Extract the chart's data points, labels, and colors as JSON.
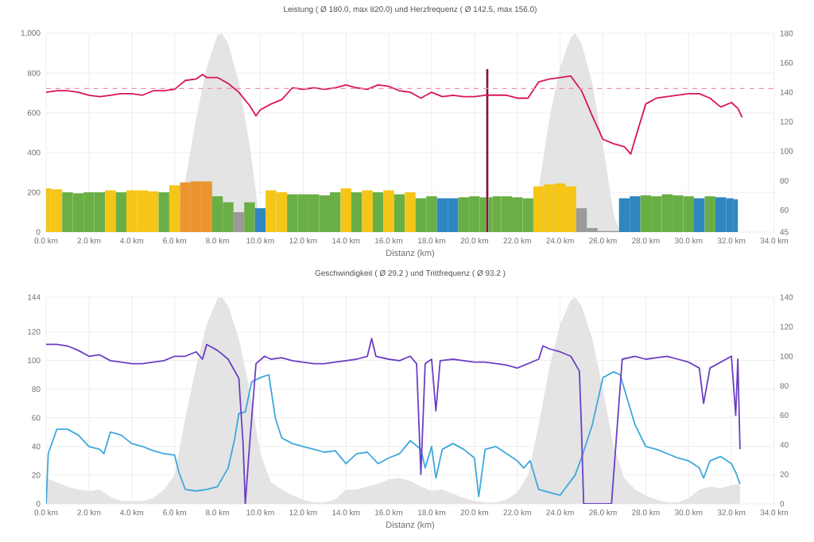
{
  "chart_data": [
    {
      "type": "bar",
      "title": "Leistung ( Ø 180.0, max 820.0) und Herzfrequenz ( Ø 142.5, max 156.0)",
      "xlabel": "Distanz (km)",
      "xlim": [
        0,
        34
      ],
      "xticks": [
        {
          "value": 0,
          "label": "0.0 km"
        },
        {
          "value": 2,
          "label": "2.0 km"
        },
        {
          "value": 4,
          "label": "4.0 km"
        },
        {
          "value": 6,
          "label": "6.0 km"
        },
        {
          "value": 8,
          "label": "8.0 km"
        },
        {
          "value": 10,
          "label": "10.0 km"
        },
        {
          "value": 12,
          "label": "12.0 km"
        },
        {
          "value": 14,
          "label": "14.0 km"
        },
        {
          "value": 16,
          "label": "16.0 km"
        },
        {
          "value": 18,
          "label": "18.0 km"
        },
        {
          "value": 20,
          "label": "20.0 km"
        },
        {
          "value": 22,
          "label": "22.0 km"
        },
        {
          "value": 24,
          "label": "24.0 km"
        },
        {
          "value": 26,
          "label": "26.0 km"
        },
        {
          "value": 28,
          "label": "28.0 km"
        },
        {
          "value": 30,
          "label": "30.0 km"
        },
        {
          "value": 32,
          "label": "32.0 km"
        },
        {
          "value": 34,
          "label": "34.0 km"
        }
      ],
      "ylim": [
        0,
        1000
      ],
      "yticks": [
        0,
        200,
        400,
        600,
        800,
        {
          "value": 1000,
          "label": "1,000"
        }
      ],
      "y2lim": [
        45,
        180
      ],
      "y2ticks": [
        45,
        60,
        80,
        100,
        120,
        140,
        160,
        180
      ],
      "grid": true,
      "ref_lines": [
        {
          "axis": "y2",
          "value": 142.5,
          "color": "#f28cab",
          "line_style": "dashed"
        }
      ],
      "series": [
        {
          "type": "area",
          "color": "#e4e4e4",
          "x": [
            6,
            6.5,
            7,
            7.5,
            8,
            8.2,
            8.5,
            9,
            9.5,
            10,
            10.3,
            22.6,
            23,
            23.5,
            24,
            24.5,
            24.7,
            25,
            25.5,
            26,
            26.5,
            26.8
          ],
          "values": [
            0,
            260,
            570,
            830,
            990,
            1000,
            950,
            750,
            440,
            40,
            0,
            0,
            220,
            570,
            830,
            980,
            1000,
            950,
            750,
            440,
            90,
            0
          ]
        },
        {
          "x": [
            0,
            0.5,
            1,
            1.5,
            2,
            2.5,
            3,
            3.5,
            4,
            4.5,
            5,
            5.5,
            6,
            6.5,
            7,
            7.5,
            8,
            8.5,
            9,
            9.5,
            10,
            10.5,
            11,
            11.5,
            12,
            12.5,
            13,
            13.5,
            14,
            14.5,
            15,
            15.5,
            16,
            16.5,
            17,
            17.5,
            18,
            18.5,
            19,
            19.5,
            20,
            20.5,
            20.6,
            20.7,
            21,
            21.5,
            22,
            22.5,
            23,
            23.5,
            24,
            24.5,
            25,
            25.5,
            26,
            26.5,
            27,
            27.5,
            28,
            28.5,
            29,
            29.5,
            30,
            30.5,
            31,
            31.5,
            32,
            32.2
          ],
          "values": [
            220,
            215,
            200,
            195,
            200,
            200,
            210,
            200,
            210,
            210,
            205,
            200,
            235,
            250,
            255,
            255,
            180,
            150,
            100,
            150,
            120,
            210,
            200,
            190,
            190,
            190,
            185,
            200,
            220,
            200,
            210,
            200,
            210,
            190,
            200,
            170,
            180,
            170,
            170,
            175,
            180,
            175,
            820,
            175,
            180,
            180,
            175,
            170,
            230,
            240,
            245,
            230,
            120,
            20,
            5,
            5,
            170,
            180,
            185,
            180,
            190,
            185,
            180,
            170,
            180,
            175,
            170,
            165
          ],
          "colors": [
            "#f5c518",
            "#f5c518",
            "#6aaf45",
            "#6aaf45",
            "#6aaf45",
            "#6aaf45",
            "#f5c518",
            "#6aaf45",
            "#f5c518",
            "#f5c518",
            "#f5c518",
            "#6aaf45",
            "#f5c518",
            "#ea9530",
            "#ea9530",
            "#ea9530",
            "#6aaf45",
            "#6aaf45",
            "#9a9a9a",
            "#6aaf45",
            "#2f86c0",
            "#f5c518",
            "#f5c518",
            "#6aaf45",
            "#6aaf45",
            "#6aaf45",
            "#6aaf45",
            "#6aaf45",
            "#f5c518",
            "#6aaf45",
            "#f5c518",
            "#6aaf45",
            "#f5c518",
            "#6aaf45",
            "#f5c518",
            "#6aaf45",
            "#6aaf45",
            "#2f86c0",
            "#2f86c0",
            "#6aaf45",
            "#6aaf45",
            "#6aaf45",
            "#8b0f45",
            "#6aaf45",
            "#6aaf45",
            "#6aaf45",
            "#6aaf45",
            "#6aaf45",
            "#f5c518",
            "#f5c518",
            "#f5c518",
            "#f5c518",
            "#9a9a9a",
            "#9a9a9a",
            "#9a9a9a",
            "#9a9a9a",
            "#2f86c0",
            "#2f86c0",
            "#6aaf45",
            "#6aaf45",
            "#6aaf45",
            "#6aaf45",
            "#6aaf45",
            "#2f86c0",
            "#6aaf45",
            "#2f86c0",
            "#2f86c0",
            "#2f86c0"
          ]
        },
        {
          "type": "line",
          "axis": "y2",
          "color": "#d8174f",
          "x": [
            0,
            0.5,
            1,
            1.5,
            2,
            2.5,
            3,
            3.5,
            4,
            4.5,
            5,
            5.5,
            6,
            6.5,
            7,
            7.3,
            7.5,
            8,
            8.5,
            9,
            9.5,
            9.8,
            10,
            10.5,
            11,
            11.5,
            12,
            12.5,
            13,
            13.5,
            14,
            14.5,
            15,
            15.5,
            16,
            16.5,
            17,
            17.5,
            18,
            18.5,
            19,
            19.5,
            20,
            20.5,
            21,
            21.5,
            22,
            22.5,
            23,
            23.5,
            24,
            24.5,
            25,
            25.5,
            26,
            26.5,
            27,
            27.3,
            27.5,
            28,
            28.5,
            29,
            29.5,
            30,
            30.5,
            31,
            31.5,
            32,
            32.3,
            32.5
          ],
          "values": [
            140,
            141,
            141,
            140,
            138,
            137,
            138,
            139,
            139,
            138,
            141,
            141,
            142,
            148,
            149,
            152,
            150,
            150,
            146,
            140,
            131,
            124,
            128,
            132,
            135,
            143,
            142,
            143,
            142,
            143,
            145,
            143,
            142,
            145,
            144,
            141,
            140,
            136,
            140,
            137,
            138,
            137,
            137,
            138,
            138,
            138,
            136,
            136,
            147,
            149,
            150,
            151,
            141,
            124,
            108,
            105,
            103,
            98,
            108,
            132,
            136,
            137,
            138,
            139,
            139,
            136,
            130,
            133,
            129,
            123
          ]
        }
      ]
    },
    {
      "type": "line",
      "title": "Geschwindigkeit ( Ø 29.2 ) und Trittfrequenz ( Ø 93.2 )",
      "xlabel": "Distanz (km)",
      "xlim": [
        0,
        34
      ],
      "xticks": [
        {
          "value": 0,
          "label": "0.0 km"
        },
        {
          "value": 2,
          "label": "2.0 km"
        },
        {
          "value": 4,
          "label": "4.0 km"
        },
        {
          "value": 6,
          "label": "6.0 km"
        },
        {
          "value": 8,
          "label": "8.0 km"
        },
        {
          "value": 10,
          "label": "10.0 km"
        },
        {
          "value": 12,
          "label": "12.0 km"
        },
        {
          "value": 14,
          "label": "14.0 km"
        },
        {
          "value": 16,
          "label": "16.0 km"
        },
        {
          "value": 18,
          "label": "18.0 km"
        },
        {
          "value": 20,
          "label": "20.0 km"
        },
        {
          "value": 22,
          "label": "22.0 km"
        },
        {
          "value": 24,
          "label": "24.0 km"
        },
        {
          "value": 26,
          "label": "26.0 km"
        },
        {
          "value": 28,
          "label": "28.0 km"
        },
        {
          "value": 30,
          "label": "30.0 km"
        },
        {
          "value": 32,
          "label": "32.0 km"
        },
        {
          "value": 34,
          "label": "34.0 km"
        }
      ],
      "ylim": [
        0,
        144
      ],
      "yticks": [
        0,
        20,
        40,
        60,
        80,
        100,
        120,
        144
      ],
      "y2lim": [
        0,
        140
      ],
      "y2ticks": [
        0,
        20,
        40,
        60,
        80,
        100,
        120,
        140
      ],
      "grid": true,
      "series": [
        {
          "type": "area",
          "color": "#e4e4e4",
          "x": [
            0,
            0.5,
            1,
            1.5,
            2,
            2.5,
            3,
            3.5,
            4,
            4.5,
            5,
            5.5,
            6,
            6.5,
            7,
            7.5,
            8,
            8.2,
            8.5,
            9,
            9.5,
            10,
            10.5,
            11,
            11.5,
            12,
            12.5,
            13,
            13.5,
            14,
            14.5,
            15,
            15.5,
            16,
            16.5,
            17,
            17.5,
            18,
            18.5,
            19,
            19.5,
            20,
            20.5,
            21,
            21.5,
            22,
            22.5,
            23,
            23.5,
            24,
            24.5,
            24.7,
            25,
            25.5,
            26,
            26.5,
            27,
            27.5,
            28,
            28.5,
            29,
            29.5,
            30,
            30.5,
            31,
            31.5,
            32,
            32.4
          ],
          "values": [
            18,
            15,
            12,
            10,
            9,
            10,
            5,
            2,
            2,
            2,
            4,
            10,
            20,
            60,
            95,
            125,
            143,
            144,
            138,
            115,
            80,
            35,
            15,
            10,
            6,
            3,
            1,
            1,
            3,
            10,
            10,
            12,
            14,
            17,
            18,
            16,
            12,
            9,
            10,
            7,
            4,
            2,
            1,
            1,
            3,
            8,
            20,
            55,
            95,
            125,
            142,
            144,
            138,
            115,
            80,
            40,
            18,
            10,
            6,
            3,
            1,
            1,
            4,
            10,
            12,
            11,
            13,
            14
          ]
        },
        {
          "color": "#3ea8dc",
          "x": [
            0,
            0.1,
            0.5,
            1,
            1.5,
            2,
            2.5,
            2.7,
            3,
            3.5,
            4,
            4.5,
            5,
            5.5,
            6,
            6.2,
            6.5,
            7,
            7.5,
            8,
            8.5,
            8.8,
            9,
            9.3,
            9.6,
            10,
            10.4,
            10.7,
            11,
            11.5,
            12,
            12.5,
            13,
            13.5,
            14,
            14.5,
            15,
            15.5,
            16,
            16.5,
            17,
            17.5,
            17.7,
            18,
            18.2,
            18.5,
            19,
            19.5,
            20,
            20.2,
            20.5,
            21,
            21.5,
            22,
            22.3,
            22.6,
            23,
            23.5,
            24,
            24.3,
            24.7,
            25,
            25.5,
            26,
            26.5,
            26.8,
            27,
            27.5,
            28,
            28.5,
            29,
            29.5,
            30,
            30.5,
            30.7,
            31,
            31.5,
            32,
            32.2,
            32.4
          ],
          "values": [
            0,
            35,
            52,
            52,
            48,
            40,
            38,
            35,
            50,
            48,
            42,
            40,
            37,
            35,
            34,
            22,
            10,
            9,
            10,
            12,
            25,
            45,
            63,
            64,
            85,
            88,
            90,
            60,
            46,
            42,
            40,
            38,
            36,
            37,
            28,
            35,
            36,
            28,
            32,
            35,
            44,
            38,
            25,
            40,
            18,
            38,
            42,
            38,
            32,
            5,
            38,
            40,
            35,
            30,
            25,
            30,
            10,
            8,
            6,
            12,
            20,
            32,
            55,
            88,
            92,
            90,
            80,
            55,
            40,
            38,
            35,
            32,
            30,
            25,
            18,
            30,
            33,
            28,
            22,
            14
          ]
        },
        {
          "axis": "y2",
          "color": "#6c3fc4",
          "x": [
            0,
            0.5,
            1,
            1.5,
            2,
            2.5,
            3,
            3.5,
            4,
            4.5,
            5,
            5.5,
            6,
            6.5,
            7,
            7.3,
            7.5,
            8,
            8.5,
            9,
            9.2,
            9.3,
            9.5,
            9.8,
            10.2,
            10.5,
            11,
            11.5,
            12,
            12.5,
            13,
            13.5,
            14,
            14.5,
            15,
            15.2,
            15.4,
            16,
            16.5,
            17,
            17.3,
            17.5,
            17.7,
            18,
            18.2,
            18.4,
            19,
            19.5,
            20,
            20.5,
            21,
            21.5,
            22,
            22.5,
            23,
            23.2,
            23.5,
            24,
            24.5,
            24.9,
            25,
            25.1,
            26.4,
            26.9,
            27.5,
            28,
            28.5,
            29,
            29.5,
            30,
            30.5,
            30.7,
            31,
            31.5,
            32,
            32.2,
            32.3,
            32.4
          ],
          "values": [
            108,
            108,
            107,
            104,
            100,
            101,
            97,
            96,
            95,
            95,
            96,
            97,
            100,
            100,
            103,
            98,
            108,
            104,
            98,
            85,
            40,
            0,
            40,
            95,
            100,
            98,
            99,
            97,
            96,
            95,
            95,
            96,
            97,
            98,
            100,
            112,
            100,
            98,
            97,
            100,
            95,
            20,
            95,
            98,
            63,
            97,
            98,
            97,
            96,
            96,
            95,
            94,
            92,
            95,
            98,
            107,
            105,
            103,
            100,
            90,
            50,
            0,
            0,
            98,
            100,
            98,
            99,
            100,
            98,
            96,
            92,
            68,
            92,
            96,
            100,
            60,
            98,
            37
          ]
        }
      ]
    }
  ]
}
